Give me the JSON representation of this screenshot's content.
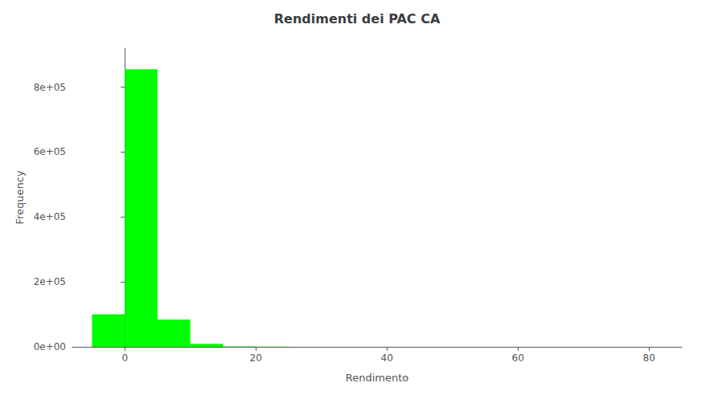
{
  "chart_data": {
    "type": "histogram",
    "title": "Rendimenti dei PAC CA",
    "xlabel": "Rendimento",
    "ylabel": "Frequency",
    "bins": [
      -5,
      0,
      5,
      10,
      15,
      20,
      25,
      30,
      35,
      40,
      45,
      50,
      55,
      60,
      65,
      70,
      75,
      80,
      85
    ],
    "values": [
      100000,
      855000,
      84000,
      9000,
      1500,
      700,
      300,
      200,
      150,
      100,
      80,
      60,
      50,
      40,
      30,
      25,
      20,
      15
    ],
    "color": "#00FF00",
    "xlim": [
      -8,
      85
    ],
    "ylim": [
      0,
      920000
    ],
    "xticks": [
      0,
      20,
      40,
      60,
      80
    ],
    "yticks": [
      {
        "value": 0,
        "label": "0e+00"
      },
      {
        "value": 200000,
        "label": "2e+05"
      },
      {
        "value": 400000,
        "label": "4e+05"
      },
      {
        "value": 600000,
        "label": "6e+05"
      },
      {
        "value": 800000,
        "label": "8e+05"
      }
    ],
    "grid": false
  }
}
